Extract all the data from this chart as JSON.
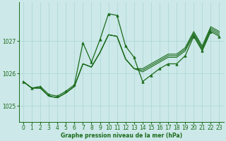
{
  "xlabel": "Graphe pression niveau de la mer (hPa)",
  "xlim": [
    -0.5,
    23.5
  ],
  "ylim": [
    1024.5,
    1028.2
  ],
  "yticks": [
    1025,
    1026,
    1027
  ],
  "xticks": [
    0,
    1,
    2,
    3,
    4,
    5,
    6,
    7,
    8,
    9,
    10,
    11,
    12,
    13,
    14,
    15,
    16,
    17,
    18,
    19,
    20,
    21,
    22,
    23
  ],
  "bg_color": "#cce8e8",
  "line_color": "#1a6b1a",
  "grid_color": "#aad4d4",
  "series1_x": [
    0,
    1,
    2,
    3,
    4,
    5,
    6,
    7,
    8,
    9,
    10,
    11,
    12,
    13,
    14,
    15,
    16,
    17,
    18,
    19,
    20,
    21,
    22,
    23
  ],
  "series1_y": [
    1025.75,
    1025.55,
    1025.6,
    1025.35,
    1025.3,
    1025.45,
    1025.65,
    1026.95,
    1026.35,
    1027.05,
    1027.85,
    1027.8,
    1026.85,
    1026.5,
    1025.75,
    1025.95,
    1026.15,
    1026.3,
    1026.3,
    1026.55,
    1027.15,
    1026.7,
    1027.3,
    1027.15
  ],
  "series2_x": [
    0,
    1,
    2,
    3,
    4,
    5,
    6,
    7,
    8,
    9,
    10,
    11,
    12,
    13,
    14,
    15,
    16,
    17,
    18,
    19,
    20,
    21,
    22,
    23
  ],
  "series2_y": [
    1025.75,
    1025.55,
    1025.55,
    1025.3,
    1025.25,
    1025.4,
    1025.6,
    1026.3,
    1026.2,
    1026.65,
    1027.2,
    1027.15,
    1026.45,
    1026.15,
    1026.05,
    1026.2,
    1026.35,
    1026.5,
    1026.5,
    1026.7,
    1027.2,
    1026.75,
    1027.35,
    1027.2
  ],
  "series3_x": [
    0,
    1,
    2,
    3,
    4,
    5,
    6,
    7,
    8,
    9,
    10,
    11,
    12,
    13,
    14,
    15,
    16,
    17,
    18,
    19,
    20,
    21,
    22,
    23
  ],
  "series3_y": [
    1025.75,
    1025.55,
    1025.55,
    1025.3,
    1025.25,
    1025.4,
    1025.6,
    1026.3,
    1026.2,
    1026.65,
    1027.2,
    1027.15,
    1026.45,
    1026.15,
    1026.1,
    1026.25,
    1026.4,
    1026.55,
    1026.55,
    1026.75,
    1027.25,
    1026.8,
    1027.4,
    1027.25
  ],
  "series4_x": [
    0,
    1,
    2,
    3,
    4,
    5,
    6,
    7,
    8,
    9,
    10,
    11,
    12,
    13,
    14,
    15,
    16,
    17,
    18,
    19,
    20,
    21,
    22,
    23
  ],
  "series4_y": [
    1025.75,
    1025.55,
    1025.55,
    1025.3,
    1025.25,
    1025.4,
    1025.6,
    1026.3,
    1026.2,
    1026.65,
    1027.2,
    1027.15,
    1026.45,
    1026.15,
    1026.15,
    1026.3,
    1026.45,
    1026.6,
    1026.6,
    1026.8,
    1027.3,
    1026.85,
    1027.45,
    1027.3
  ]
}
